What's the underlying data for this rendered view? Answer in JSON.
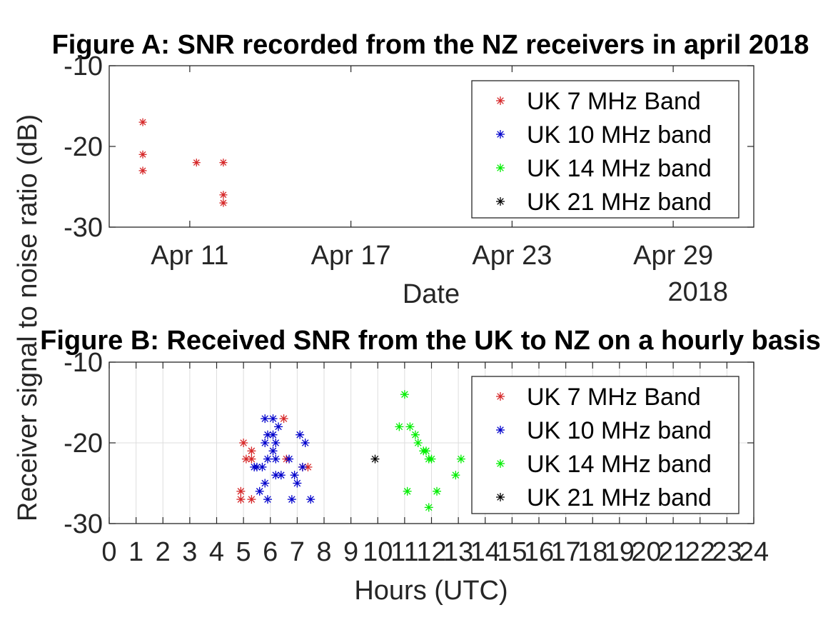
{
  "chart_data": [
    {
      "type": "scatter",
      "title": "Figure A: SNR recorded from the NZ receivers in april 2018",
      "xlabel": "Date",
      "x_secondary_label": "2018",
      "ylabel": "",
      "ylim": [
        -30,
        -10
      ],
      "yticks": [
        "-10",
        "-20",
        "-30"
      ],
      "xlim": [
        "2018-04-08",
        "2018-05-02"
      ],
      "xticks": [
        {
          "label": "Apr 11",
          "date": "2018-04-11"
        },
        {
          "label": "Apr 17",
          "date": "2018-04-17"
        },
        {
          "label": "Apr 23",
          "date": "2018-04-23"
        },
        {
          "label": "Apr 29",
          "date": "2018-04-29"
        }
      ],
      "grid": false,
      "legend_position": "top-right",
      "series": [
        {
          "name": "UK 7 MHz Band",
          "color": "#d62728",
          "points": [
            {
              "x": "2018-04-09 06:00",
              "y": -17
            },
            {
              "x": "2018-04-09 06:00",
              "y": -21
            },
            {
              "x": "2018-04-09 06:00",
              "y": -23
            },
            {
              "x": "2018-04-11 06:00",
              "y": -22
            },
            {
              "x": "2018-04-12 06:00",
              "y": -22
            },
            {
              "x": "2018-04-12 06:00",
              "y": -26
            },
            {
              "x": "2018-04-12 06:00",
              "y": -27
            }
          ]
        },
        {
          "name": "UK 10 MHz band",
          "color": "#0000cc",
          "points": []
        },
        {
          "name": "UK 14 MHz band",
          "color": "#00ee00",
          "points": []
        },
        {
          "name": "UK 21 MHz band",
          "color": "#000000",
          "points": []
        }
      ]
    },
    {
      "type": "scatter",
      "title": "Figure B: Received SNR from the UK to NZ on a hourly basis",
      "xlabel": "Hours (UTC)",
      "ylabel": "Receiver signal to noise ratio (dB)",
      "ylim": [
        -30,
        -10
      ],
      "yticks": [
        "-10",
        "-20",
        "-30"
      ],
      "xlim": [
        0,
        24
      ],
      "xticks": [
        "0",
        "1",
        "2",
        "3",
        "4",
        "5",
        "6",
        "7",
        "8",
        "9",
        "10",
        "11",
        "12",
        "13",
        "14",
        "15",
        "16",
        "17",
        "18",
        "19",
        "20",
        "21",
        "22",
        "23",
        "24"
      ],
      "grid": true,
      "legend_position": "top-right",
      "series": [
        {
          "name": "UK 7 MHz Band",
          "color": "#d62728",
          "points": [
            {
              "x": 5.0,
              "y": -20
            },
            {
              "x": 5.3,
              "y": -21
            },
            {
              "x": 5.1,
              "y": -22
            },
            {
              "x": 5.3,
              "y": -22
            },
            {
              "x": 4.9,
              "y": -26
            },
            {
              "x": 4.9,
              "y": -27
            },
            {
              "x": 5.3,
              "y": -27
            },
            {
              "x": 6.5,
              "y": -17
            },
            {
              "x": 6.6,
              "y": -22
            },
            {
              "x": 7.4,
              "y": -23
            },
            {
              "x": 7.2,
              "y": -23
            }
          ]
        },
        {
          "name": "UK 10 MHz band",
          "color": "#0000cc",
          "points": [
            {
              "x": 5.8,
              "y": -17
            },
            {
              "x": 6.1,
              "y": -17
            },
            {
              "x": 6.3,
              "y": -18
            },
            {
              "x": 5.9,
              "y": -19
            },
            {
              "x": 6.1,
              "y": -19
            },
            {
              "x": 5.8,
              "y": -20
            },
            {
              "x": 6.2,
              "y": -20
            },
            {
              "x": 6.1,
              "y": -21
            },
            {
              "x": 5.9,
              "y": -22
            },
            {
              "x": 6.2,
              "y": -22
            },
            {
              "x": 5.4,
              "y": -23
            },
            {
              "x": 5.7,
              "y": -23
            },
            {
              "x": 5.5,
              "y": -23
            },
            {
              "x": 6.4,
              "y": -24
            },
            {
              "x": 6.2,
              "y": -24
            },
            {
              "x": 5.8,
              "y": -25
            },
            {
              "x": 5.6,
              "y": -26
            },
            {
              "x": 5.9,
              "y": -27
            },
            {
              "x": 6.7,
              "y": -22
            },
            {
              "x": 7.1,
              "y": -19
            },
            {
              "x": 7.3,
              "y": -20
            },
            {
              "x": 6.9,
              "y": -24
            },
            {
              "x": 7.0,
              "y": -25
            },
            {
              "x": 7.2,
              "y": -23
            },
            {
              "x": 6.8,
              "y": -27
            },
            {
              "x": 7.5,
              "y": -27
            }
          ]
        },
        {
          "name": "UK 14 MHz band",
          "color": "#00ee00",
          "points": [
            {
              "x": 11.0,
              "y": -14
            },
            {
              "x": 10.8,
              "y": -18
            },
            {
              "x": 11.2,
              "y": -18
            },
            {
              "x": 11.4,
              "y": -19
            },
            {
              "x": 11.5,
              "y": -20
            },
            {
              "x": 11.7,
              "y": -21
            },
            {
              "x": 11.8,
              "y": -21
            },
            {
              "x": 11.9,
              "y": -22
            },
            {
              "x": 12.0,
              "y": -22
            },
            {
              "x": 13.1,
              "y": -22
            },
            {
              "x": 12.9,
              "y": -24
            },
            {
              "x": 11.1,
              "y": -26
            },
            {
              "x": 12.2,
              "y": -26
            },
            {
              "x": 11.9,
              "y": -28
            }
          ]
        },
        {
          "name": "UK 21 MHz band",
          "color": "#000000",
          "points": [
            {
              "x": 9.9,
              "y": -22
            }
          ]
        }
      ]
    }
  ]
}
